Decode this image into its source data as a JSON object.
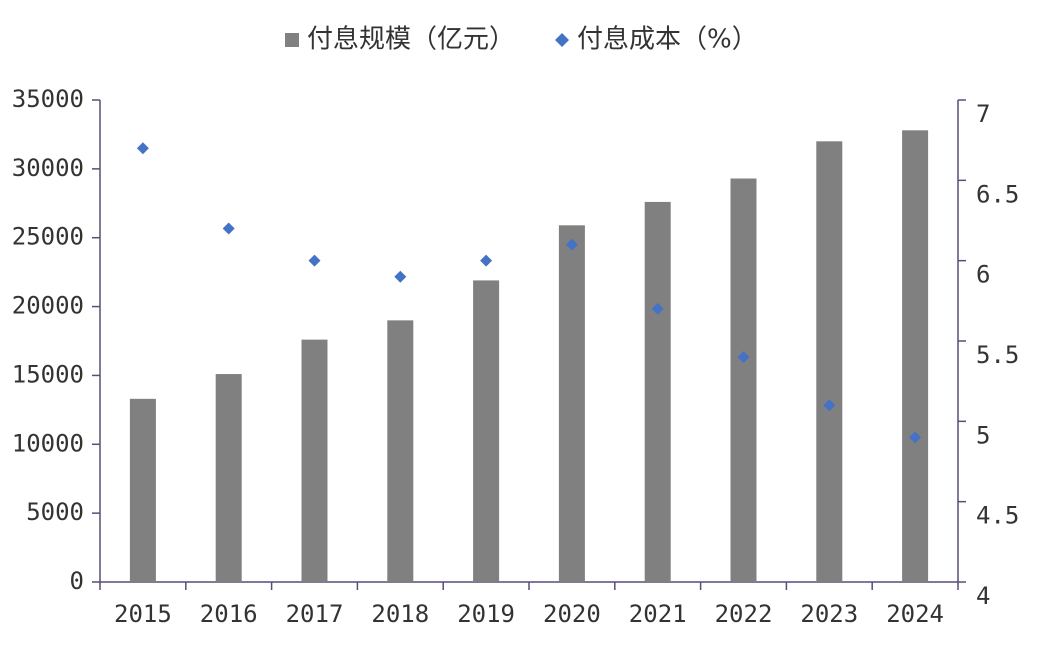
{
  "chart_data": {
    "type": "bar",
    "categories": [
      "2015",
      "2016",
      "2017",
      "2018",
      "2019",
      "2020",
      "2021",
      "2022",
      "2023",
      "2024"
    ],
    "series": [
      {
        "name": "付息规模（亿元）",
        "type": "bar",
        "color": "#808080",
        "values": [
          13300,
          15100,
          17600,
          19000,
          21900,
          25900,
          27600,
          29300,
          32000,
          32800
        ]
      },
      {
        "name": "付息成本（%）",
        "type": "scatter",
        "axis": "y2",
        "color": "#4472c4",
        "values": [
          6.7,
          6.2,
          6.0,
          5.9,
          6.0,
          6.1,
          5.7,
          5.4,
          5.1,
          4.9
        ]
      }
    ],
    "ylim": [
      0,
      35000
    ],
    "yticks": [
      0,
      5000,
      10000,
      15000,
      20000,
      25000,
      30000,
      35000
    ],
    "y2lim": [
      4,
      7
    ],
    "y2ticks": [
      4,
      4.5,
      5,
      5.5,
      6,
      6.5,
      7
    ],
    "legend": "top",
    "grid": false
  }
}
